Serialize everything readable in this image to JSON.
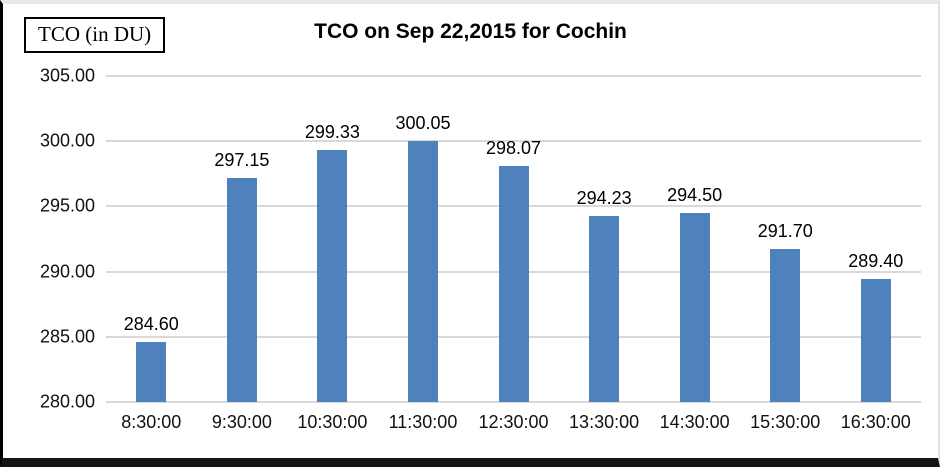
{
  "unit_label": "TCO (in DU)",
  "chart_data": {
    "type": "bar",
    "title": "TCO on Sep 22,2015 for Cochin",
    "categories": [
      "8:30:00",
      "9:30:00",
      "10:30:00",
      "11:30:00",
      "12:30:00",
      "13:30:00",
      "14:30:00",
      "15:30:00",
      "16:30:00"
    ],
    "values": [
      284.6,
      297.15,
      299.33,
      300.05,
      298.07,
      294.23,
      294.5,
      291.7,
      289.4
    ],
    "data_labels": [
      "284.60",
      "297.15",
      "299.33",
      "300.05",
      "298.07",
      "294.23",
      "294.50",
      "291.70",
      "289.40"
    ],
    "xlabel": "",
    "ylabel": "",
    "ylim": [
      280,
      305
    ],
    "ytick_step": 5,
    "ytick_labels": [
      "305.00",
      "300.00",
      "295.00",
      "290.00",
      "285.00",
      "280.00"
    ],
    "grid": true,
    "legend_position": "none",
    "bar_color": "#4f81bd",
    "gridline_color": "#d9d9d9",
    "label_color": "#000000"
  }
}
